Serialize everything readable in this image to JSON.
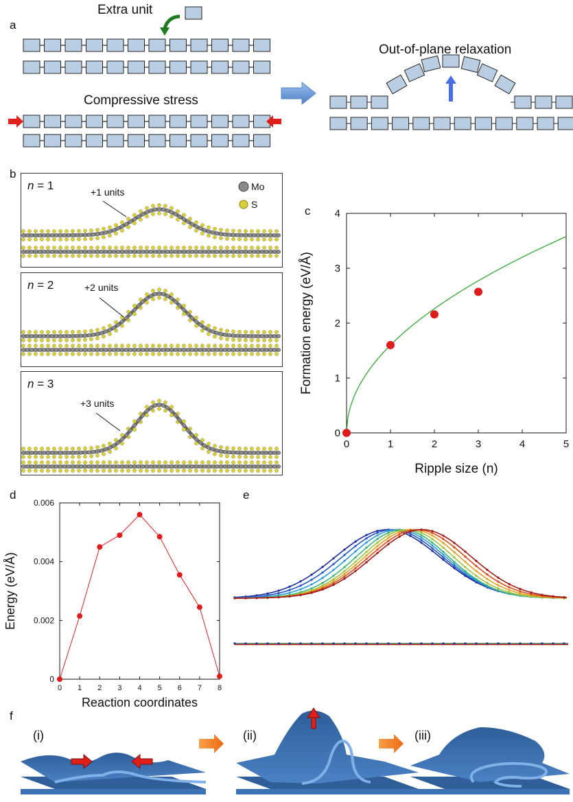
{
  "panels": {
    "a": "a",
    "b": "b",
    "c": "c",
    "d": "d",
    "e": "e",
    "f": "f"
  },
  "panel_a": {
    "extra_unit": "Extra unit",
    "compressive_stress": "Compressive stress",
    "relaxation": "Out-of-plane relaxation",
    "colors": {
      "unit_fill": "#b9cde3",
      "green_arrow": "#1f7a1f",
      "red_arrow": "#e0201b",
      "blue_arrow": "#4a6ee0"
    }
  },
  "panel_b": {
    "legend_mo": "Mo",
    "legend_s": "S",
    "rows": [
      {
        "n_label": "n",
        "n_value": "= 1",
        "units": "+1 units"
      },
      {
        "n_label": "n",
        "n_value": "= 2",
        "units": "+2 units"
      },
      {
        "n_label": "n",
        "n_value": "= 3",
        "units": "+3 units"
      }
    ],
    "colors": {
      "mo": "#8a8a8a",
      "s": "#d8cf3a"
    }
  },
  "panel_f": {
    "steps": [
      "(i)",
      "(ii)",
      "(iii)"
    ],
    "colors": {
      "sheet": "#3d6faa",
      "edge": "#7fb0e8",
      "arrow_orange": "#f07a1a",
      "arrow_red": "#e0201b"
    }
  },
  "chart_data": [
    {
      "id": "c",
      "type": "scatter",
      "xlabel": "Ripple size (n)",
      "ylabel": "Formation energy (eV/Å)",
      "xlim": [
        0,
        5
      ],
      "ylim": [
        0,
        4
      ],
      "xticks": [
        "0",
        "1",
        "2",
        "3",
        "4",
        "5"
      ],
      "yticks": [
        "0",
        "1",
        "2",
        "3",
        "4"
      ],
      "points": [
        {
          "x": 0,
          "y": 0
        },
        {
          "x": 1,
          "y": 1.6
        },
        {
          "x": 2,
          "y": 2.16
        },
        {
          "x": 3,
          "y": 2.57
        }
      ],
      "fit_curve": {
        "color": "#2eaa2e"
      },
      "marker_color": "#e01b1b"
    },
    {
      "id": "d",
      "type": "line",
      "xlabel": "Reaction coordinates",
      "ylabel": "Energy (eV/Å)",
      "xlim": [
        0,
        8
      ],
      "ylim": [
        0,
        0.006
      ],
      "xticks": [
        "0",
        "1",
        "2",
        "3",
        "4",
        "5",
        "6",
        "7",
        "8"
      ],
      "yticks": [
        "0",
        "0.002",
        "0.004",
        "0.006"
      ],
      "x": [
        0,
        1,
        2,
        3,
        4,
        5,
        6,
        7,
        8
      ],
      "y": [
        0,
        0.00215,
        0.0045,
        0.0049,
        0.0056,
        0.00485,
        0.00355,
        0.00245,
        0.0001
      ],
      "color": "#e01b1b"
    }
  ]
}
